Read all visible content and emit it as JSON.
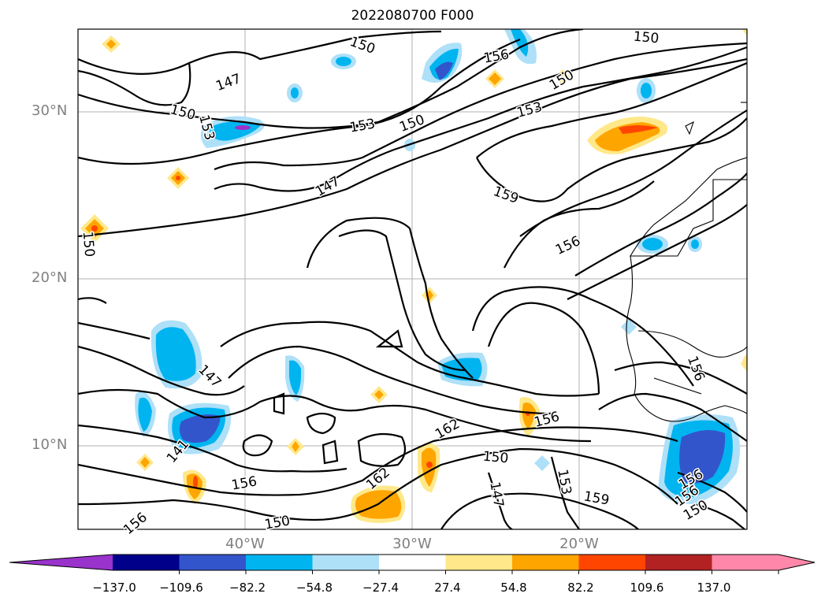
{
  "title": "2022080700 F000",
  "lat_labels": [
    "30°N",
    "20°N",
    "10°N"
  ],
  "lon_labels": [
    "40°W",
    "30°W",
    "20°W"
  ],
  "contour_labels": [
    "150",
    "147",
    "150",
    "153",
    "153",
    "150",
    "156",
    "150",
    "153",
    "159",
    "150",
    "147",
    "156",
    "147",
    "150",
    "156",
    "162",
    "162",
    "150",
    "153",
    "159",
    "147",
    "141",
    "156",
    "150",
    "156",
    "156",
    "156",
    "150",
    "156"
  ],
  "colorbar": {
    "ticks": [
      "−137.0",
      "−109.6",
      "−82.2",
      "−54.8",
      "−27.4",
      "27.4",
      "54.8",
      "82.2",
      "109.6",
      "137.0"
    ],
    "colors": [
      "#9933cc",
      "#00008b",
      "#3355cc",
      "#00b4f0",
      "#aee0f8",
      "#ffffff",
      "#ffe88a",
      "#ffa500",
      "#ff4500",
      "#b22222",
      "#ff88aa",
      "#ff88aa"
    ]
  }
}
